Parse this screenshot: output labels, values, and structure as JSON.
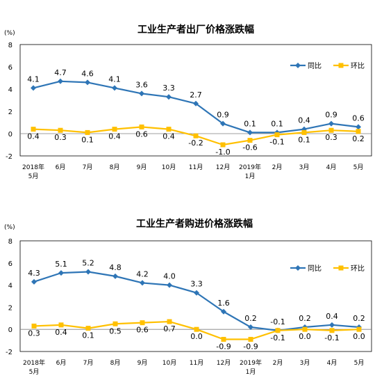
{
  "chart_data": [
    {
      "type": "line",
      "title": "工业生产者出厂价格涨跌幅",
      "unit_label": "(%)",
      "ylim": [
        -2,
        8
      ],
      "yticks": [
        "8",
        "6",
        "4",
        "2",
        "0",
        "-2"
      ],
      "categories": [
        [
          "2018年",
          "5月"
        ],
        [
          "6月"
        ],
        [
          "7月"
        ],
        [
          "8月"
        ],
        [
          "9月"
        ],
        [
          "10月"
        ],
        [
          "11月"
        ],
        [
          "12月"
        ],
        [
          "2019年",
          "1月"
        ],
        [
          "2月"
        ],
        [
          "3月"
        ],
        [
          "4月"
        ],
        [
          "5月"
        ]
      ],
      "series": [
        {
          "name": "同比",
          "color": "#2E75B6",
          "values": [
            4.1,
            4.7,
            4.6,
            4.1,
            3.6,
            3.3,
            2.7,
            0.9,
            0.1,
            0.1,
            0.4,
            0.9,
            0.6
          ],
          "labels": [
            "4.1",
            "4.7",
            "4.6",
            "4.1",
            "3.6",
            "3.3",
            "2.7",
            "0.9",
            "0.1",
            "0.1",
            "0.4",
            "0.9",
            "0.6"
          ]
        },
        {
          "name": "环比",
          "color": "#FFC000",
          "values": [
            0.4,
            0.3,
            0.1,
            0.4,
            0.6,
            0.4,
            -0.2,
            -1.0,
            -0.6,
            -0.1,
            0.1,
            0.3,
            0.2
          ],
          "labels": [
            "0.4",
            "0.3",
            "0.1",
            "0.4",
            "0.6",
            "0.4",
            "-0.2",
            "-1.0",
            "-0.6",
            "-0.1",
            "0.1",
            "0.3",
            "0.2"
          ]
        }
      ],
      "legend": "top-right",
      "grid": false
    },
    {
      "type": "line",
      "title": "工业生产者购进价格涨跌幅",
      "unit_label": "(%)",
      "ylim": [
        -2,
        8
      ],
      "yticks": [
        "8",
        "6",
        "4",
        "2",
        "0",
        "-2"
      ],
      "categories": [
        [
          "2018年",
          "5月"
        ],
        [
          "6月"
        ],
        [
          "7月"
        ],
        [
          "8月"
        ],
        [
          "9月"
        ],
        [
          "10月"
        ],
        [
          "11月"
        ],
        [
          "12月"
        ],
        [
          "2019年",
          "1月"
        ],
        [
          "2月"
        ],
        [
          "3月"
        ],
        [
          "4月"
        ],
        [
          "5月"
        ]
      ],
      "series": [
        {
          "name": "同比",
          "color": "#2E75B6",
          "values": [
            4.3,
            5.1,
            5.2,
            4.8,
            4.2,
            4.0,
            3.3,
            1.6,
            0.2,
            -0.1,
            0.2,
            0.4,
            0.2
          ],
          "labels": [
            "4.3",
            "5.1",
            "5.2",
            "4.8",
            "4.2",
            "4.0",
            "3.3",
            "1.6",
            "0.2",
            "-0.1",
            "0.2",
            "0.4",
            "0.2"
          ]
        },
        {
          "name": "环比",
          "color": "#FFC000",
          "values": [
            0.3,
            0.4,
            0.1,
            0.5,
            0.6,
            0.7,
            0.0,
            -0.9,
            -0.9,
            -0.1,
            0.0,
            -0.1,
            0.0
          ],
          "labels": [
            "0.3",
            "0.4",
            "0.1",
            "0.5",
            "0.6",
            "0.7",
            "0.0",
            "-0.9",
            "-0.9",
            "-0.1",
            "0.0",
            "-0.1",
            "0.0"
          ]
        }
      ],
      "legend": "top-right",
      "grid": false
    }
  ]
}
